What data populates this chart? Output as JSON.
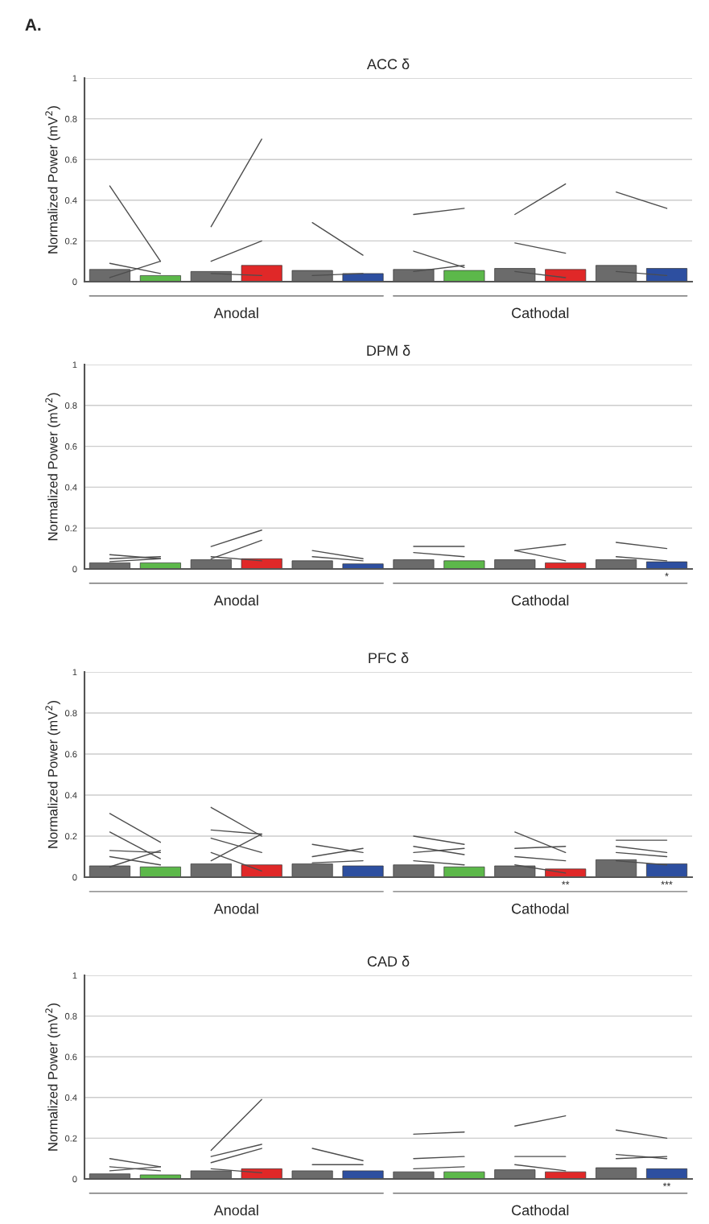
{
  "chart_data": [
    {
      "type": "bar",
      "title": "ACC δ",
      "ylabel": "Normalized Power (mV$^{2}$)",
      "categories": [
        null,
        null,
        null,
        null,
        null,
        null,
        null,
        null,
        null,
        null,
        null,
        null
      ],
      "ylim": [
        0,
        1
      ],
      "yticks": [
        0,
        0.2,
        0.4,
        0.6,
        0.8,
        1
      ],
      "grid": "y",
      "legend": false,
      "annotations": [
        "A.",
        "Anodal",
        "Cathodal"
      ],
      "series": [
        {
          "type": "bar",
          "colors": [
            "#6b6b6b",
            "#5cb84a",
            "#6b6b6b",
            "#e02828",
            "#6b6b6b",
            "#2d4fa0",
            "#6b6b6b",
            "#5cb84a",
            "#6b6b6b",
            "#e02828",
            "#6b6b6b",
            "#2d4fa0"
          ],
          "values": [
            0.06,
            0.03,
            0.05,
            0.08,
            0.055,
            0.04,
            0.06,
            0.055,
            0.065,
            0.06,
            0.08,
            0.065
          ]
        },
        {
          "type": "line",
          "color": "#4d4d4d",
          "values": [
            0.47,
            0.1,
            null,
            null,
            null,
            null,
            null,
            null,
            null,
            null,
            null,
            null
          ]
        },
        {
          "type": "line",
          "color": "#4d4d4d",
          "values": [
            0.09,
            0.04,
            null,
            null,
            null,
            null,
            null,
            null,
            null,
            null,
            null,
            null
          ]
        },
        {
          "type": "line",
          "color": "#4d4d4d",
          "values": [
            0.02,
            0.1,
            null,
            null,
            null,
            null,
            null,
            null,
            null,
            null,
            null,
            null
          ]
        },
        {
          "type": "line",
          "color": "#4d4d4d",
          "values": [
            null,
            null,
            0.27,
            0.7,
            null,
            null,
            null,
            null,
            null,
            null,
            null,
            null
          ]
        },
        {
          "type": "line",
          "color": "#4d4d4d",
          "values": [
            null,
            null,
            0.1,
            0.2,
            null,
            null,
            null,
            null,
            null,
            null,
            null,
            null
          ]
        },
        {
          "type": "line",
          "color": "#4d4d4d",
          "values": [
            null,
            null,
            0.04,
            0.03,
            null,
            null,
            null,
            null,
            null,
            null,
            null,
            null
          ]
        },
        {
          "type": "line",
          "color": "#4d4d4d",
          "values": [
            null,
            null,
            null,
            null,
            0.29,
            0.13,
            null,
            null,
            null,
            null,
            null,
            null
          ]
        },
        {
          "type": "line",
          "color": "#4d4d4d",
          "values": [
            null,
            null,
            null,
            null,
            0.03,
            0.04,
            null,
            null,
            null,
            null,
            null,
            null
          ]
        },
        {
          "type": "line",
          "color": "#4d4d4d",
          "values": [
            null,
            null,
            null,
            null,
            null,
            null,
            0.33,
            0.36,
            null,
            null,
            null,
            null
          ]
        },
        {
          "type": "line",
          "color": "#4d4d4d",
          "values": [
            null,
            null,
            null,
            null,
            null,
            null,
            0.15,
            0.07,
            null,
            null,
            null,
            null
          ]
        },
        {
          "type": "line",
          "color": "#4d4d4d",
          "values": [
            null,
            null,
            null,
            null,
            null,
            null,
            0.05,
            0.08,
            null,
            null,
            null,
            null
          ]
        },
        {
          "type": "line",
          "color": "#4d4d4d",
          "values": [
            null,
            null,
            null,
            null,
            null,
            null,
            null,
            null,
            0.33,
            0.48,
            null,
            null
          ]
        },
        {
          "type": "line",
          "color": "#4d4d4d",
          "values": [
            null,
            null,
            null,
            null,
            null,
            null,
            null,
            null,
            0.19,
            0.14,
            null,
            null
          ]
        },
        {
          "type": "line",
          "color": "#4d4d4d",
          "values": [
            null,
            null,
            null,
            null,
            null,
            null,
            null,
            null,
            0.05,
            0.02,
            null,
            null
          ]
        },
        {
          "type": "line",
          "color": "#4d4d4d",
          "values": [
            null,
            null,
            null,
            null,
            null,
            null,
            null,
            null,
            null,
            null,
            0.44,
            0.36
          ]
        },
        {
          "type": "line",
          "color": "#4d4d4d",
          "values": [
            null,
            null,
            null,
            null,
            null,
            null,
            null,
            null,
            null,
            null,
            0.05,
            0.03
          ]
        }
      ]
    },
    {
      "type": "bar",
      "title": "DPM δ",
      "ylabel": "Normalized Power (mV$^{2}$)",
      "categories": [
        null,
        null,
        null,
        null,
        null,
        null,
        null,
        null,
        null,
        null,
        null,
        null
      ],
      "ylim": [
        0,
        1
      ],
      "yticks": [
        0,
        0.2,
        0.4,
        0.6,
        0.8,
        1
      ],
      "grid": "y",
      "legend": false,
      "annotations": [
        "Anodal",
        "Cathodal",
        "*"
      ],
      "series": [
        {
          "type": "bar",
          "colors": [
            "#6b6b6b",
            "#5cb84a",
            "#6b6b6b",
            "#e02828",
            "#6b6b6b",
            "#2d4fa0",
            "#6b6b6b",
            "#5cb84a",
            "#6b6b6b",
            "#e02828",
            "#6b6b6b",
            "#2d4fa0"
          ],
          "values": [
            0.03,
            0.03,
            0.045,
            0.05,
            0.04,
            0.025,
            0.045,
            0.04,
            0.045,
            0.03,
            0.045,
            0.035
          ]
        },
        {
          "type": "line",
          "color": "#4d4d4d",
          "values": [
            0.07,
            0.05,
            null,
            null,
            null,
            null,
            null,
            null,
            null,
            null,
            null,
            null
          ]
        },
        {
          "type": "line",
          "color": "#4d4d4d",
          "values": [
            0.05,
            0.06,
            null,
            null,
            null,
            null,
            null,
            null,
            null,
            null,
            null,
            null
          ]
        },
        {
          "type": "line",
          "color": "#4d4d4d",
          "values": [
            0.036,
            0.05,
            null,
            null,
            null,
            null,
            null,
            null,
            null,
            null,
            null,
            null
          ]
        },
        {
          "type": "line",
          "color": "#4d4d4d",
          "values": [
            null,
            null,
            0.11,
            0.19,
            null,
            null,
            null,
            null,
            null,
            null,
            null,
            null
          ]
        },
        {
          "type": "line",
          "color": "#4d4d4d",
          "values": [
            null,
            null,
            0.05,
            0.14,
            null,
            null,
            null,
            null,
            null,
            null,
            null,
            null
          ]
        },
        {
          "type": "line",
          "color": "#4d4d4d",
          "values": [
            null,
            null,
            0.06,
            0.04,
            null,
            null,
            null,
            null,
            null,
            null,
            null,
            null
          ]
        },
        {
          "type": "line",
          "color": "#4d4d4d",
          "values": [
            null,
            null,
            null,
            null,
            0.09,
            0.05,
            null,
            null,
            null,
            null,
            null,
            null
          ]
        },
        {
          "type": "line",
          "color": "#4d4d4d",
          "values": [
            null,
            null,
            null,
            null,
            0.06,
            0.04,
            null,
            null,
            null,
            null,
            null,
            null
          ]
        },
        {
          "type": "line",
          "color": "#4d4d4d",
          "values": [
            null,
            null,
            null,
            null,
            null,
            null,
            0.11,
            0.11,
            null,
            null,
            null,
            null
          ]
        },
        {
          "type": "line",
          "color": "#4d4d4d",
          "values": [
            null,
            null,
            null,
            null,
            null,
            null,
            0.08,
            0.06,
            null,
            null,
            null,
            null
          ]
        },
        {
          "type": "line",
          "color": "#4d4d4d",
          "values": [
            null,
            null,
            null,
            null,
            null,
            null,
            null,
            null,
            0.09,
            0.12,
            null,
            null
          ]
        },
        {
          "type": "line",
          "color": "#4d4d4d",
          "values": [
            null,
            null,
            null,
            null,
            null,
            null,
            null,
            null,
            0.09,
            0.04,
            null,
            null
          ]
        },
        {
          "type": "line",
          "color": "#4d4d4d",
          "values": [
            null,
            null,
            null,
            null,
            null,
            null,
            null,
            null,
            null,
            null,
            0.13,
            0.1
          ]
        },
        {
          "type": "line",
          "color": "#4d4d4d",
          "values": [
            null,
            null,
            null,
            null,
            null,
            null,
            null,
            null,
            null,
            null,
            0.06,
            0.04
          ]
        }
      ]
    },
    {
      "type": "bar",
      "title": "PFC δ",
      "ylabel": "Normalized Power (mV$^{2}$)",
      "categories": [
        null,
        null,
        null,
        null,
        null,
        null,
        null,
        null,
        null,
        null,
        null,
        null
      ],
      "ylim": [
        0,
        1
      ],
      "yticks": [
        0,
        0.2,
        0.4,
        0.6,
        0.8,
        1
      ],
      "grid": "y",
      "legend": false,
      "annotations": [
        "Anodal",
        "Cathodal",
        "**",
        "***"
      ],
      "series": [
        {
          "type": "bar",
          "colors": [
            "#6b6b6b",
            "#5cb84a",
            "#6b6b6b",
            "#e02828",
            "#6b6b6b",
            "#2d4fa0",
            "#6b6b6b",
            "#5cb84a",
            "#6b6b6b",
            "#e02828",
            "#6b6b6b",
            "#2d4fa0"
          ],
          "values": [
            0.055,
            0.05,
            0.065,
            0.06,
            0.065,
            0.055,
            0.06,
            0.05,
            0.055,
            0.04,
            0.085,
            0.065
          ]
        },
        {
          "type": "line",
          "color": "#4d4d4d",
          "values": [
            0.31,
            0.17,
            null,
            null,
            null,
            null,
            null,
            null,
            null,
            null,
            null,
            null
          ]
        },
        {
          "type": "line",
          "color": "#4d4d4d",
          "values": [
            0.22,
            0.09,
            null,
            null,
            null,
            null,
            null,
            null,
            null,
            null,
            null,
            null
          ]
        },
        {
          "type": "line",
          "color": "#4d4d4d",
          "values": [
            0.13,
            0.12,
            null,
            null,
            null,
            null,
            null,
            null,
            null,
            null,
            null,
            null
          ]
        },
        {
          "type": "line",
          "color": "#4d4d4d",
          "values": [
            0.1,
            0.06,
            null,
            null,
            null,
            null,
            null,
            null,
            null,
            null,
            null,
            null
          ]
        },
        {
          "type": "line",
          "color": "#4d4d4d",
          "values": [
            0.05,
            0.13,
            null,
            null,
            null,
            null,
            null,
            null,
            null,
            null,
            null,
            null
          ]
        },
        {
          "type": "line",
          "color": "#4d4d4d",
          "values": [
            null,
            null,
            0.34,
            0.2,
            null,
            null,
            null,
            null,
            null,
            null,
            null,
            null
          ]
        },
        {
          "type": "line",
          "color": "#4d4d4d",
          "values": [
            null,
            null,
            0.23,
            0.21,
            null,
            null,
            null,
            null,
            null,
            null,
            null,
            null
          ]
        },
        {
          "type": "line",
          "color": "#4d4d4d",
          "values": [
            null,
            null,
            0.19,
            0.12,
            null,
            null,
            null,
            null,
            null,
            null,
            null,
            null
          ]
        },
        {
          "type": "line",
          "color": "#4d4d4d",
          "values": [
            null,
            null,
            0.08,
            0.21,
            null,
            null,
            null,
            null,
            null,
            null,
            null,
            null
          ]
        },
        {
          "type": "line",
          "color": "#4d4d4d",
          "values": [
            null,
            null,
            0.12,
            0.03,
            null,
            null,
            null,
            null,
            null,
            null,
            null,
            null
          ]
        },
        {
          "type": "line",
          "color": "#4d4d4d",
          "values": [
            null,
            null,
            null,
            null,
            0.16,
            0.12,
            null,
            null,
            null,
            null,
            null,
            null
          ]
        },
        {
          "type": "line",
          "color": "#4d4d4d",
          "values": [
            null,
            null,
            null,
            null,
            0.1,
            0.14,
            null,
            null,
            null,
            null,
            null,
            null
          ]
        },
        {
          "type": "line",
          "color": "#4d4d4d",
          "values": [
            null,
            null,
            null,
            null,
            0.07,
            0.08,
            null,
            null,
            null,
            null,
            null,
            null
          ]
        },
        {
          "type": "line",
          "color": "#4d4d4d",
          "values": [
            null,
            null,
            null,
            null,
            null,
            null,
            0.2,
            0.16,
            null,
            null,
            null,
            null
          ]
        },
        {
          "type": "line",
          "color": "#4d4d4d",
          "values": [
            null,
            null,
            null,
            null,
            null,
            null,
            0.15,
            0.11,
            null,
            null,
            null,
            null
          ]
        },
        {
          "type": "line",
          "color": "#4d4d4d",
          "values": [
            null,
            null,
            null,
            null,
            null,
            null,
            0.12,
            0.14,
            null,
            null,
            null,
            null
          ]
        },
        {
          "type": "line",
          "color": "#4d4d4d",
          "values": [
            null,
            null,
            null,
            null,
            null,
            null,
            0.08,
            0.06,
            null,
            null,
            null,
            null
          ]
        },
        {
          "type": "line",
          "color": "#4d4d4d",
          "values": [
            null,
            null,
            null,
            null,
            null,
            null,
            null,
            null,
            0.22,
            0.12,
            null,
            null
          ]
        },
        {
          "type": "line",
          "color": "#4d4d4d",
          "values": [
            null,
            null,
            null,
            null,
            null,
            null,
            null,
            null,
            0.14,
            0.15,
            null,
            null
          ]
        },
        {
          "type": "line",
          "color": "#4d4d4d",
          "values": [
            null,
            null,
            null,
            null,
            null,
            null,
            null,
            null,
            0.1,
            0.08,
            null,
            null
          ]
        },
        {
          "type": "line",
          "color": "#4d4d4d",
          "values": [
            null,
            null,
            null,
            null,
            null,
            null,
            null,
            null,
            0.06,
            0.02,
            null,
            null
          ]
        },
        {
          "type": "line",
          "color": "#4d4d4d",
          "values": [
            null,
            null,
            null,
            null,
            null,
            null,
            null,
            null,
            null,
            null,
            0.18,
            0.18
          ]
        },
        {
          "type": "line",
          "color": "#4d4d4d",
          "values": [
            null,
            null,
            null,
            null,
            null,
            null,
            null,
            null,
            null,
            null,
            0.15,
            0.12
          ]
        },
        {
          "type": "line",
          "color": "#4d4d4d",
          "values": [
            null,
            null,
            null,
            null,
            null,
            null,
            null,
            null,
            null,
            null,
            0.12,
            0.1
          ]
        },
        {
          "type": "line",
          "color": "#4d4d4d",
          "values": [
            null,
            null,
            null,
            null,
            null,
            null,
            null,
            null,
            null,
            null,
            0.08,
            0.06
          ]
        }
      ]
    },
    {
      "type": "bar",
      "title": "CAD δ",
      "ylabel": "Normalized Power (mV$^{2}$)",
      "categories": [
        null,
        null,
        null,
        null,
        null,
        null,
        null,
        null,
        null,
        null,
        null,
        null
      ],
      "ylim": [
        0,
        1
      ],
      "yticks": [
        0,
        0.2,
        0.4,
        0.6,
        0.8,
        1
      ],
      "grid": "y",
      "legend": false,
      "annotations": [
        "Anodal",
        "Cathodal",
        "**"
      ],
      "series": [
        {
          "type": "bar",
          "colors": [
            "#6b6b6b",
            "#5cb84a",
            "#6b6b6b",
            "#e02828",
            "#6b6b6b",
            "#2d4fa0",
            "#6b6b6b",
            "#5cb84a",
            "#6b6b6b",
            "#e02828",
            "#6b6b6b",
            "#2d4fa0"
          ],
          "values": [
            0.025,
            0.02,
            0.04,
            0.05,
            0.04,
            0.04,
            0.035,
            0.035,
            0.045,
            0.035,
            0.055,
            0.05
          ]
        },
        {
          "type": "line",
          "color": "#4d4d4d",
          "values": [
            0.1,
            0.06,
            null,
            null,
            null,
            null,
            null,
            null,
            null,
            null,
            null,
            null
          ]
        },
        {
          "type": "line",
          "color": "#4d4d4d",
          "values": [
            0.06,
            0.04,
            null,
            null,
            null,
            null,
            null,
            null,
            null,
            null,
            null,
            null
          ]
        },
        {
          "type": "line",
          "color": "#4d4d4d",
          "values": [
            0.04,
            0.06,
            null,
            null,
            null,
            null,
            null,
            null,
            null,
            null,
            null,
            null
          ]
        },
        {
          "type": "line",
          "color": "#4d4d4d",
          "values": [
            null,
            null,
            0.14,
            0.39,
            null,
            null,
            null,
            null,
            null,
            null,
            null,
            null
          ]
        },
        {
          "type": "line",
          "color": "#4d4d4d",
          "values": [
            null,
            null,
            0.11,
            0.17,
            null,
            null,
            null,
            null,
            null,
            null,
            null,
            null
          ]
        },
        {
          "type": "line",
          "color": "#4d4d4d",
          "values": [
            null,
            null,
            0.08,
            0.15,
            null,
            null,
            null,
            null,
            null,
            null,
            null,
            null
          ]
        },
        {
          "type": "line",
          "color": "#4d4d4d",
          "values": [
            null,
            null,
            0.05,
            0.03,
            null,
            null,
            null,
            null,
            null,
            null,
            null,
            null
          ]
        },
        {
          "type": "line",
          "color": "#4d4d4d",
          "values": [
            null,
            null,
            null,
            null,
            0.15,
            0.09,
            null,
            null,
            null,
            null,
            null,
            null
          ]
        },
        {
          "type": "line",
          "color": "#4d4d4d",
          "values": [
            null,
            null,
            null,
            null,
            0.07,
            0.07,
            null,
            null,
            null,
            null,
            null,
            null
          ]
        },
        {
          "type": "line",
          "color": "#4d4d4d",
          "values": [
            null,
            null,
            null,
            null,
            null,
            null,
            0.22,
            0.23,
            null,
            null,
            null,
            null
          ]
        },
        {
          "type": "line",
          "color": "#4d4d4d",
          "values": [
            null,
            null,
            null,
            null,
            null,
            null,
            0.1,
            0.11,
            null,
            null,
            null,
            null
          ]
        },
        {
          "type": "line",
          "color": "#4d4d4d",
          "values": [
            null,
            null,
            null,
            null,
            null,
            null,
            0.05,
            0.06,
            null,
            null,
            null,
            null
          ]
        },
        {
          "type": "line",
          "color": "#4d4d4d",
          "values": [
            null,
            null,
            null,
            null,
            null,
            null,
            null,
            null,
            0.26,
            0.31,
            null,
            null
          ]
        },
        {
          "type": "line",
          "color": "#4d4d4d",
          "values": [
            null,
            null,
            null,
            null,
            null,
            null,
            null,
            null,
            0.11,
            0.11,
            null,
            null
          ]
        },
        {
          "type": "line",
          "color": "#4d4d4d",
          "values": [
            null,
            null,
            null,
            null,
            null,
            null,
            null,
            null,
            0.07,
            0.04,
            null,
            null
          ]
        },
        {
          "type": "line",
          "color": "#4d4d4d",
          "values": [
            null,
            null,
            null,
            null,
            null,
            null,
            null,
            null,
            null,
            null,
            0.24,
            0.2
          ]
        },
        {
          "type": "line",
          "color": "#4d4d4d",
          "values": [
            null,
            null,
            null,
            null,
            null,
            null,
            null,
            null,
            null,
            null,
            0.12,
            0.1
          ]
        },
        {
          "type": "line",
          "color": "#4d4d4d",
          "values": [
            null,
            null,
            null,
            null,
            null,
            null,
            null,
            null,
            null,
            null,
            0.1,
            0.11
          ]
        }
      ]
    }
  ]
}
